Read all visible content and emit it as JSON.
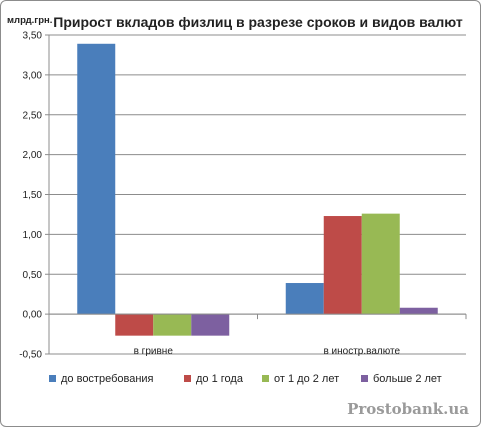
{
  "chart_data": {
    "type": "bar",
    "title": "Прирост вкладов физлиц в разрезе сроков и видов валют",
    "ylabel": "млрд.грн.",
    "xlabel": "",
    "ylim": [
      -0.5,
      3.5
    ],
    "yticks": [
      "-0,50",
      "0,00",
      "0,50",
      "1,00",
      "1,50",
      "2,00",
      "2,50",
      "3,00",
      "3,50"
    ],
    "ytick_values": [
      -0.5,
      0,
      0.5,
      1.0,
      1.5,
      2.0,
      2.5,
      3.0,
      3.5
    ],
    "grid": true,
    "legend_position": "bottom",
    "categories": [
      "в гривне",
      "в иностр.валюте"
    ],
    "series": [
      {
        "name": "до востребования",
        "color": "#4a7ebb",
        "values": [
          3.39,
          0.39
        ]
      },
      {
        "name": "до 1 года",
        "color": "#be4b48",
        "values": [
          -0.27,
          1.23
        ]
      },
      {
        "name": "от 1 до 2 лет",
        "color": "#98b954",
        "values": [
          -0.27,
          1.26
        ]
      },
      {
        "name": "больше  2 лет",
        "color": "#7d60a0",
        "values": [
          -0.27,
          0.08
        ]
      }
    ]
  },
  "watermark": "Prostobank.ua"
}
